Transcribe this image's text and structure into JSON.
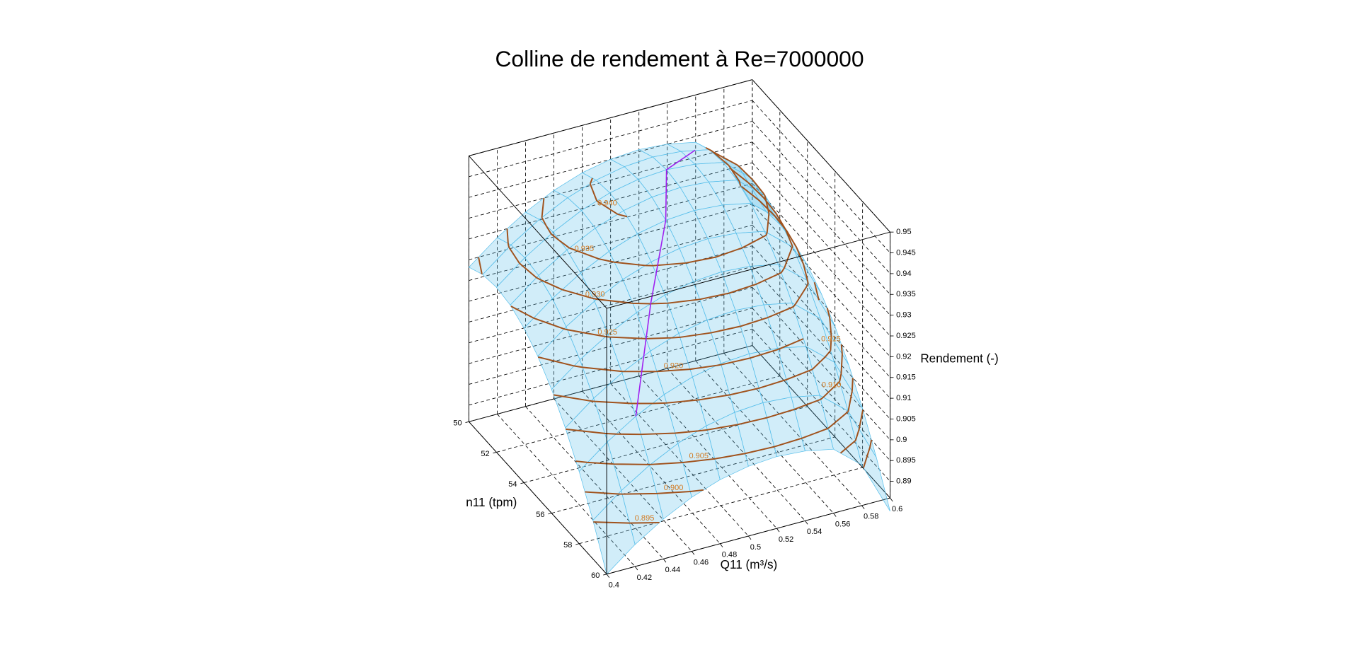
{
  "chart_data": {
    "type": "surface3d",
    "title": "Colline de rendement à Re=7000000",
    "x_label": "Q11 (m³/s)",
    "y_label": "n11 (tpm)",
    "z_label": "Rendement (-)",
    "x": [
      0.4,
      0.42,
      0.44,
      0.46,
      0.48,
      0.5,
      0.52,
      0.54,
      0.56,
      0.58,
      0.6
    ],
    "y": [
      50,
      51,
      52,
      53,
      54,
      55,
      56,
      57,
      58,
      59,
      60
    ],
    "z": [
      [
        0.9232,
        0.9285,
        0.9328,
        0.9362,
        0.9386,
        0.94,
        0.9405,
        0.94,
        0.9386,
        0.933,
        0.92
      ],
      [
        0.9251,
        0.9304,
        0.9347,
        0.9381,
        0.9405,
        0.9419,
        0.9424,
        0.9419,
        0.9405,
        0.9349,
        0.9219
      ],
      [
        0.9257,
        0.931,
        0.9353,
        0.9387,
        0.9411,
        0.9425,
        0.943,
        0.9425,
        0.9411,
        0.9355,
        0.9225
      ],
      [
        0.9251,
        0.9304,
        0.9347,
        0.9381,
        0.9405,
        0.9419,
        0.9424,
        0.9419,
        0.9405,
        0.9349,
        0.9219
      ],
      [
        0.9232,
        0.9285,
        0.9328,
        0.9362,
        0.9386,
        0.94,
        0.9405,
        0.94,
        0.9386,
        0.933,
        0.92
      ],
      [
        0.9201,
        0.9254,
        0.9297,
        0.9331,
        0.9355,
        0.9369,
        0.9374,
        0.9369,
        0.9355,
        0.9299,
        0.9169
      ],
      [
        0.9158,
        0.9211,
        0.9254,
        0.9288,
        0.9312,
        0.9326,
        0.9331,
        0.9326,
        0.9312,
        0.9256,
        0.9126
      ],
      [
        0.9102,
        0.9155,
        0.9198,
        0.9232,
        0.9256,
        0.927,
        0.9275,
        0.927,
        0.9256,
        0.92,
        0.907
      ],
      [
        0.9034,
        0.9087,
        0.913,
        0.9164,
        0.9188,
        0.9202,
        0.9207,
        0.9202,
        0.9188,
        0.9132,
        0.9002
      ],
      [
        0.8953,
        0.9006,
        0.9049,
        0.9083,
        0.9107,
        0.9121,
        0.9126,
        0.9121,
        0.9107,
        0.9051,
        0.8921
      ],
      [
        0.886,
        0.8913,
        0.8956,
        0.899,
        0.9014,
        0.9028,
        0.9033,
        0.9028,
        0.9014,
        0.8958,
        0.8828
      ]
    ],
    "xlim": [
      0.4,
      0.6
    ],
    "ylim": [
      50,
      60
    ],
    "zlim": [
      0.886,
      0.95
    ],
    "xticks": [
      0.4,
      0.42,
      0.44,
      0.46,
      0.48,
      0.5,
      0.52,
      0.54,
      0.56,
      0.58,
      0.6
    ],
    "yticks": [
      50,
      52,
      54,
      56,
      58,
      60
    ],
    "zticks": [
      0.89,
      0.895,
      0.9,
      0.905,
      0.91,
      0.915,
      0.92,
      0.925,
      0.93,
      0.935,
      0.94,
      0.945,
      0.95
    ],
    "grid": true,
    "surface_color": "#5bc0eb",
    "contours": {
      "color": "#a0521d",
      "label_color": "#d2781e",
      "levels": [
        {
          "value": 0.895,
          "label": "0.895"
        },
        {
          "value": 0.9,
          "label": "0.900"
        },
        {
          "value": 0.905,
          "label": "0.905"
        },
        {
          "value": 0.91,
          "label": "0.910"
        },
        {
          "value": 0.915,
          "label": "0.915"
        },
        {
          "value": 0.92,
          "label": "0.920"
        },
        {
          "value": 0.925,
          "label": "0.925"
        },
        {
          "value": 0.93,
          "label": "0.930"
        },
        {
          "value": 0.935,
          "label": "0.935"
        },
        {
          "value": 0.94,
          "label": "0.940"
        }
      ]
    },
    "optimum_line": {
      "color": "#a020f0",
      "x": [
        0.44,
        0.47,
        0.5,
        0.52,
        0.55
      ],
      "y": [
        58,
        56,
        54,
        52,
        51
      ],
      "z": [
        0.913,
        0.9301,
        0.94,
        0.943,
        0.9413
      ]
    }
  }
}
